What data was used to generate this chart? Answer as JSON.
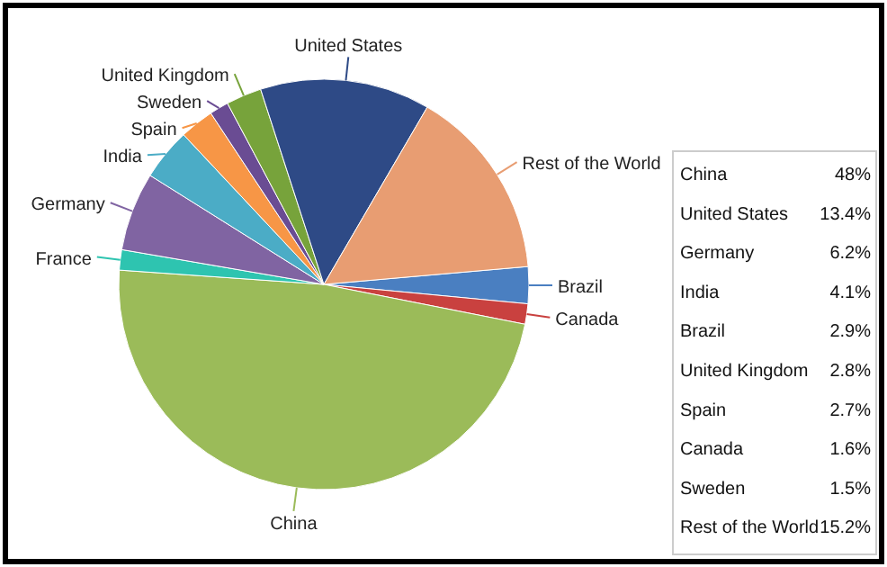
{
  "chart_data": [
    {
      "type": "pie",
      "categories": [
        "Brazil",
        "Canada",
        "China",
        "France",
        "Germany",
        "India",
        "Spain",
        "Sweden",
        "United Kingdom",
        "United States",
        "Rest of the World"
      ],
      "values": [
        2.9,
        1.6,
        48,
        1.6,
        6.2,
        4.1,
        2.7,
        1.5,
        2.8,
        13.4,
        15.2
      ],
      "colors": [
        "#4a7fc1",
        "#c9413f",
        "#9bbb59",
        "#2ec4b0",
        "#8064a2",
        "#4bacc6",
        "#f79646",
        "#6a4c93",
        "#77a33b",
        "#2e4a86",
        "#e89d72"
      ]
    },
    {
      "type": "other",
      "categories": [
        "China",
        "United States",
        "Germany",
        "India",
        "Brazil",
        "United Kingdom",
        "Spain",
        "Canada",
        "Sweden",
        "Rest of the World"
      ],
      "value_labels": [
        "48%",
        "13.4%",
        "6.2%",
        "4.1%",
        "2.9%",
        "2.8%",
        "2.7%",
        "1.6%",
        "1.5%",
        "15.2%"
      ]
    }
  ]
}
